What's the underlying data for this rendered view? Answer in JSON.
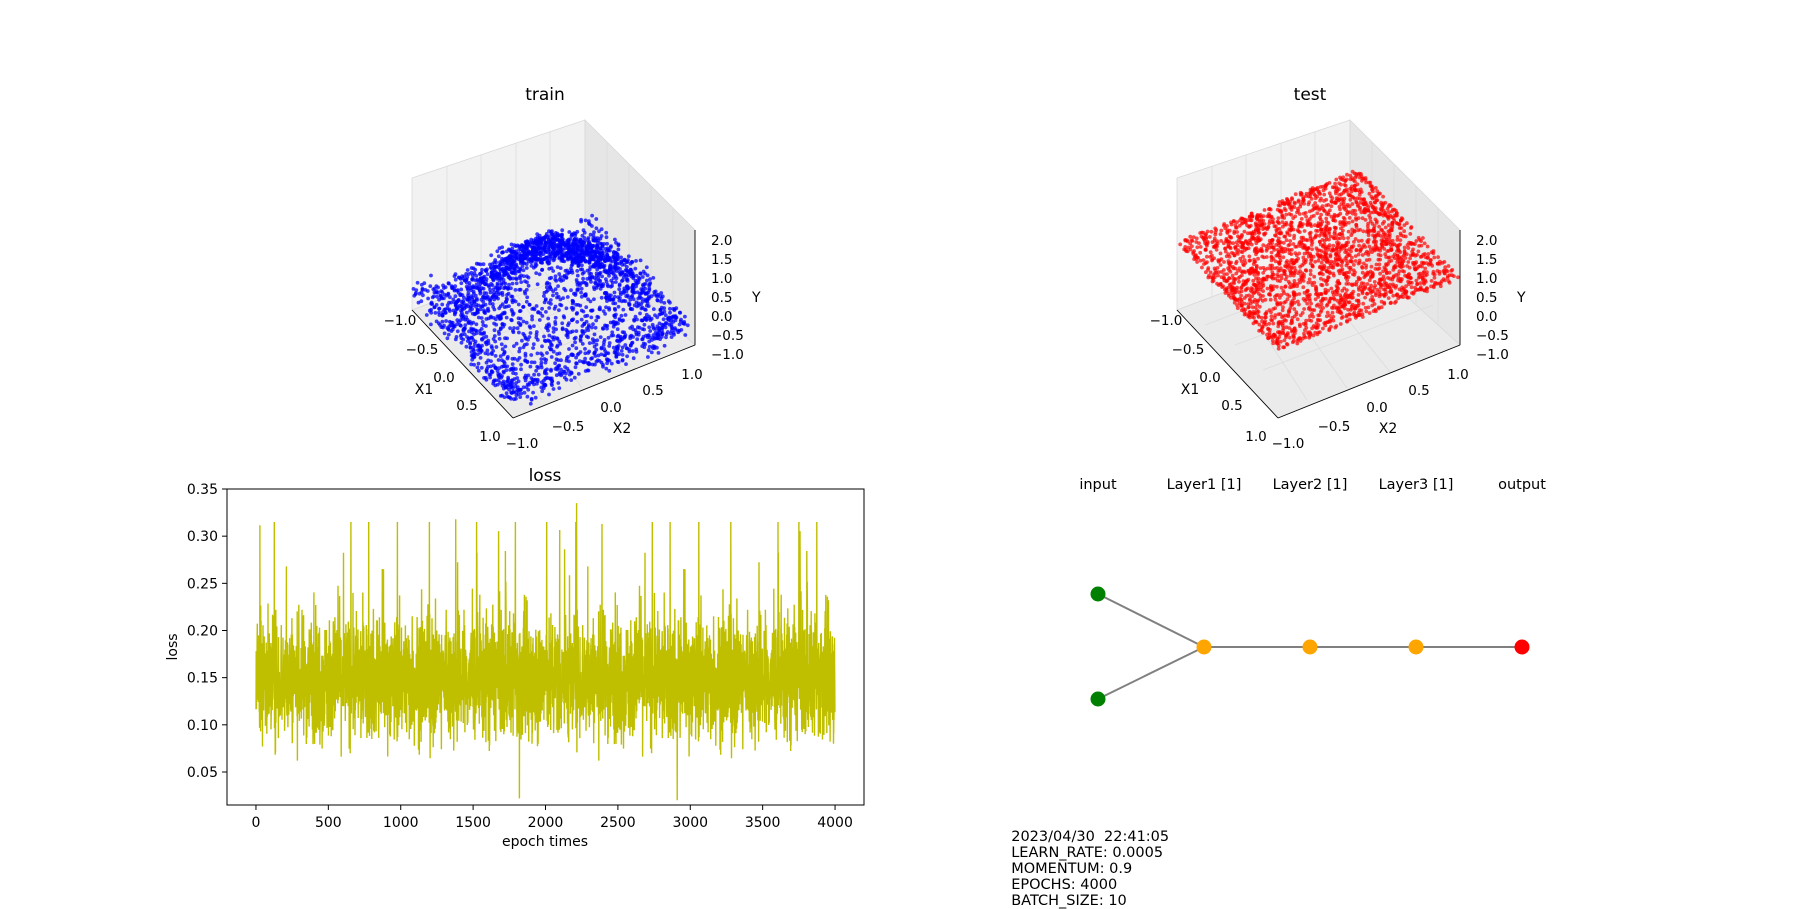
{
  "train_panel": {
    "title": "train",
    "xlabel": "X1",
    "ylabel": "X2",
    "zlabel": "Y",
    "x_ticks": [
      "−1.0",
      "−0.5",
      "0.0",
      "0.5",
      "1.0"
    ],
    "y_ticks": [
      "−1.0",
      "−0.5",
      "0.0",
      "0.5",
      "1.0"
    ],
    "z_ticks": [
      "−1.0",
      "−0.5",
      "0.0",
      "0.5",
      "1.0",
      "1.5",
      "2.0"
    ],
    "point_color": "#0000ff"
  },
  "test_panel": {
    "title": "test",
    "xlabel": "X1",
    "ylabel": "X2",
    "zlabel": "Y",
    "x_ticks": [
      "−1.0",
      "−0.5",
      "0.0",
      "0.5",
      "1.0"
    ],
    "y_ticks": [
      "−1.0",
      "−0.5",
      "0.0",
      "0.5",
      "1.0"
    ],
    "z_ticks": [
      "−1.0",
      "−0.5",
      "0.0",
      "0.5",
      "1.0",
      "1.5",
      "2.0"
    ],
    "point_color": "#ff0000"
  },
  "chart_data": [
    {
      "type": "scatter",
      "title": "train",
      "xlabel": "X1",
      "ylabel": "X2",
      "zlabel": "Y",
      "xlim": [
        -1.0,
        1.0
      ],
      "ylim": [
        -1.0,
        1.0
      ],
      "zlim": [
        -1.0,
        2.0
      ],
      "point_color": "#0000ff",
      "shape": "ring with raised corners"
    },
    {
      "type": "scatter",
      "title": "test",
      "xlabel": "X1",
      "ylabel": "X2",
      "zlabel": "Y",
      "xlim": [
        -1.0,
        1.0
      ],
      "ylim": [
        -1.0,
        1.0
      ],
      "zlim": [
        -1.0,
        2.0
      ],
      "point_color": "#ff0000",
      "shape": "flat sheet"
    },
    {
      "type": "line",
      "title": "loss",
      "xlabel": "epoch times",
      "ylabel": "loss",
      "xlim": [
        -200,
        4200
      ],
      "ylim": [
        0.015,
        0.35
      ],
      "x_ticks": [
        0,
        500,
        1000,
        1500,
        2000,
        2500,
        3000,
        3500,
        4000
      ],
      "y_ticks": [
        0.05,
        0.1,
        0.15,
        0.2,
        0.25,
        0.3,
        0.35
      ],
      "y_tick_labels": [
        "0.05",
        "0.10",
        "0.15",
        "0.20",
        "0.25",
        "0.30",
        "0.35"
      ],
      "line_color": "#bfbf00",
      "series_length": 4000,
      "mean": 0.15,
      "approx_min": 0.02,
      "approx_max": 0.335,
      "peaks": [
        {
          "x": 2215,
          "y": 0.335
        },
        {
          "x": 1380,
          "y": 0.318
        },
        {
          "x": 3750,
          "y": 0.315
        },
        {
          "x": 2390,
          "y": 0.313
        },
        {
          "x": 2910,
          "y": 0.02
        },
        {
          "x": 1820,
          "y": 0.022
        }
      ]
    }
  ],
  "network": {
    "layer_labels": [
      "input",
      "Layer1 [1]",
      "Layer2 [1]",
      "Layer3 [1]",
      "output"
    ],
    "node_colors": {
      "input": "#008000",
      "hidden": "#ffa500",
      "output": "#ff0000",
      "edge": "#808080"
    }
  },
  "footer": {
    "timestamp": "2023/04/30  22:41:05",
    "learn_rate": "LEARN_RATE: 0.0005",
    "momentum": "MOMENTUM: 0.9",
    "epochs": "EPOCHS: 4000",
    "batch_size": "BATCH_SIZE: 10"
  }
}
